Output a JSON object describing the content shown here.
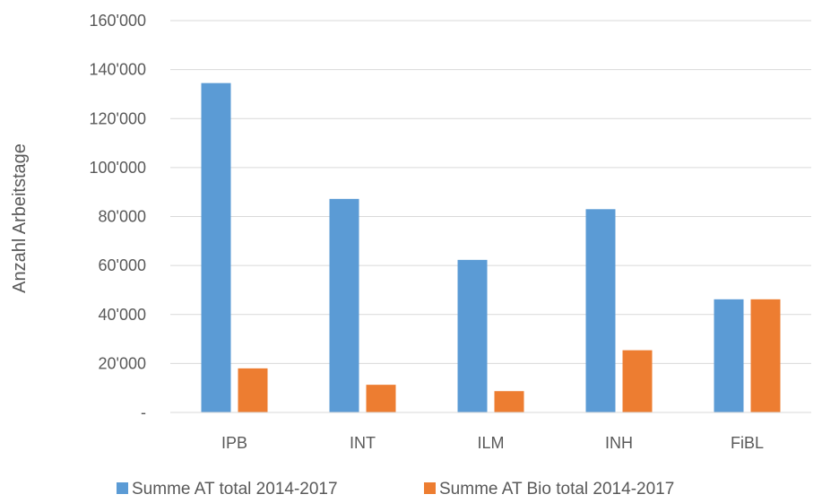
{
  "chart_data": {
    "type": "bar",
    "title": "",
    "xlabel": "",
    "ylabel": "Anzahl Arbeitstage",
    "ylim": [
      0,
      160000
    ],
    "y_ticks": [
      0,
      20000,
      40000,
      60000,
      80000,
      100000,
      120000,
      140000,
      160000
    ],
    "y_tick_labels": [
      "-",
      "20'000",
      "40'000",
      "60'000",
      "80'000",
      "100'000",
      "120'000",
      "140'000",
      "160'000"
    ],
    "categories": [
      "IPB",
      "INT",
      "ILM",
      "INH",
      "FiBL"
    ],
    "series": [
      {
        "name": "Summe AT total 2014-2017",
        "color": "#5B9BD5",
        "values": [
          134500,
          87200,
          62300,
          83000,
          46200
        ]
      },
      {
        "name": "Summe AT Bio total 2014-2017",
        "color": "#ED7D31",
        "values": [
          18000,
          11300,
          8700,
          25400,
          46200
        ]
      }
    ],
    "grid": true,
    "legend_position": "bottom"
  }
}
